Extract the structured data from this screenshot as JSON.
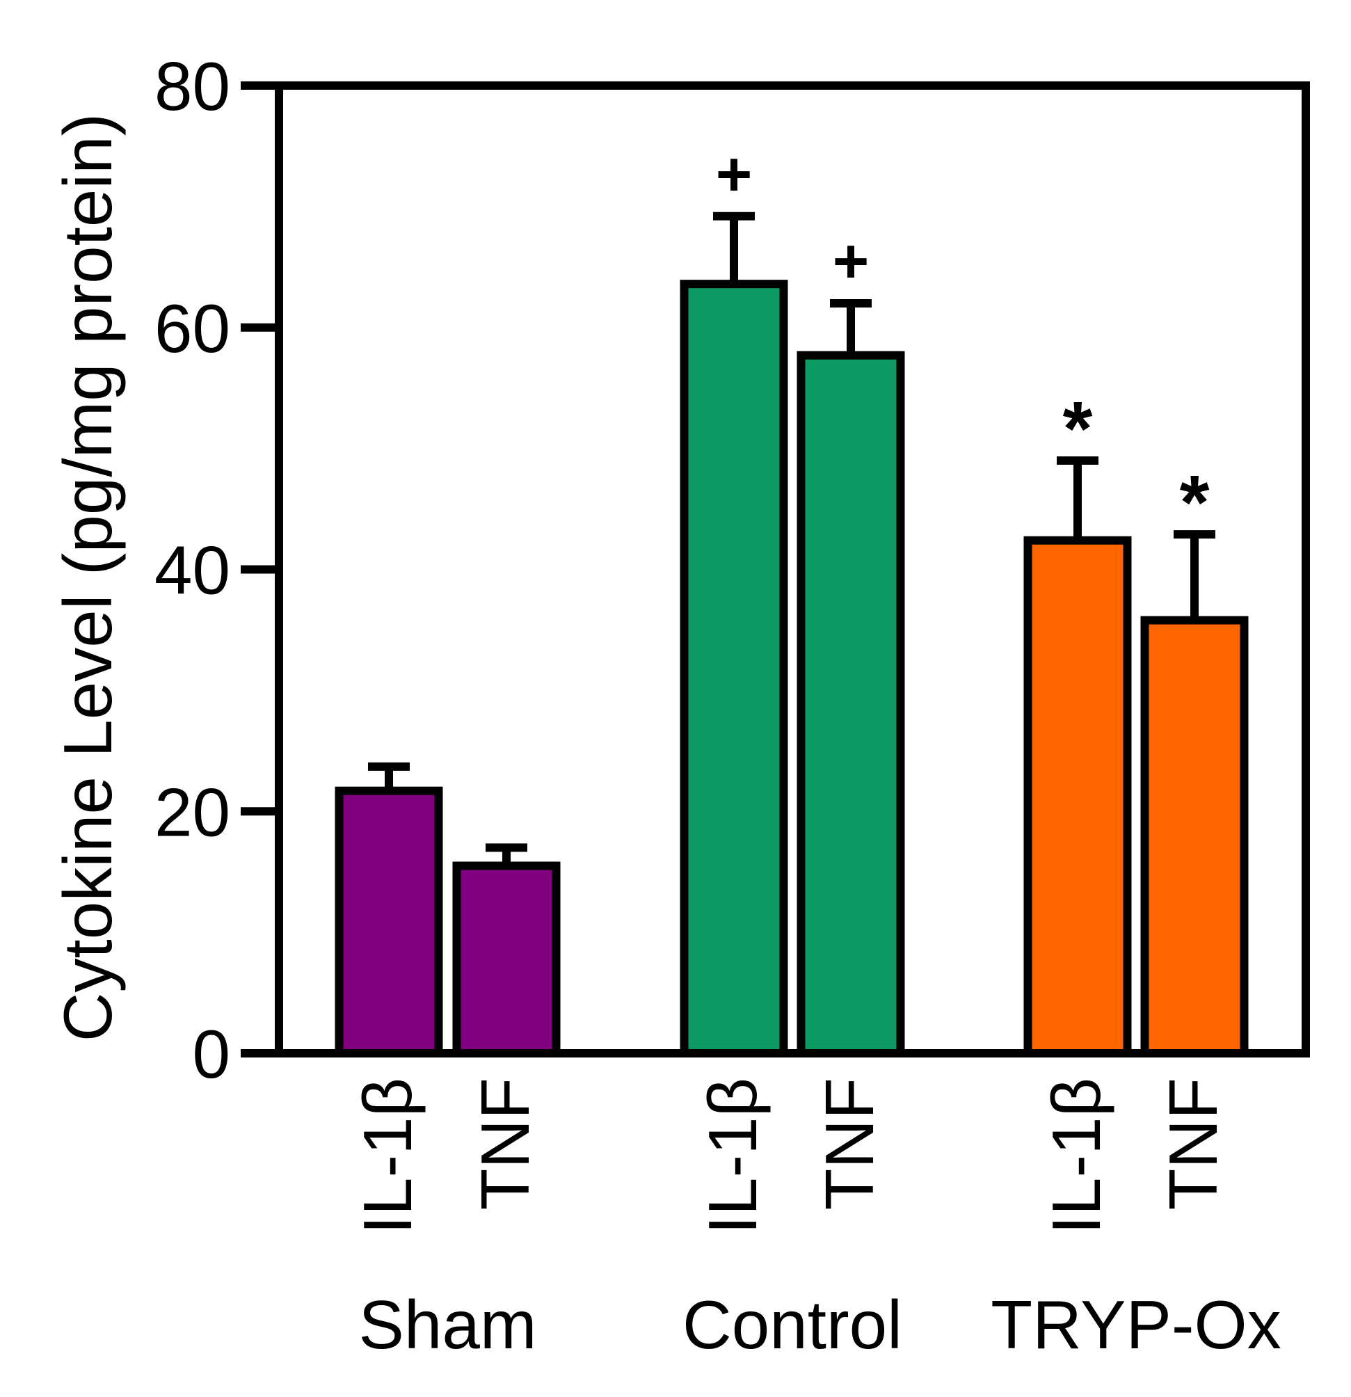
{
  "chart_data": {
    "type": "bar",
    "ylabel": "Cytokine Level (pg/mg protein)",
    "xlabel": "",
    "ylim": [
      0,
      80
    ],
    "yticks": [
      "0",
      "20",
      "40",
      "60",
      "80"
    ],
    "grid": false,
    "groups": [
      {
        "name": "Sham",
        "color": "#800080",
        "bars": [
          {
            "label": "IL-1β",
            "value": 21.7,
            "error": 2.0,
            "annotation": ""
          },
          {
            "label": "TNF",
            "value": 15.5,
            "error": 1.5,
            "annotation": ""
          }
        ]
      },
      {
        "name": "Control",
        "color": "#0E9A63",
        "bars": [
          {
            "label": "IL-1β",
            "value": 63.6,
            "error": 5.6,
            "annotation": "+"
          },
          {
            "label": "TNF",
            "value": 57.7,
            "error": 4.3,
            "annotation": "+"
          }
        ]
      },
      {
        "name": "TRYP-Ox",
        "color": "#FF6600",
        "bars": [
          {
            "label": "IL-1β",
            "value": 42.4,
            "error": 6.6,
            "annotation": "*"
          },
          {
            "label": "TNF",
            "value": 35.8,
            "error": 7.1,
            "annotation": "*"
          }
        ]
      }
    ]
  }
}
